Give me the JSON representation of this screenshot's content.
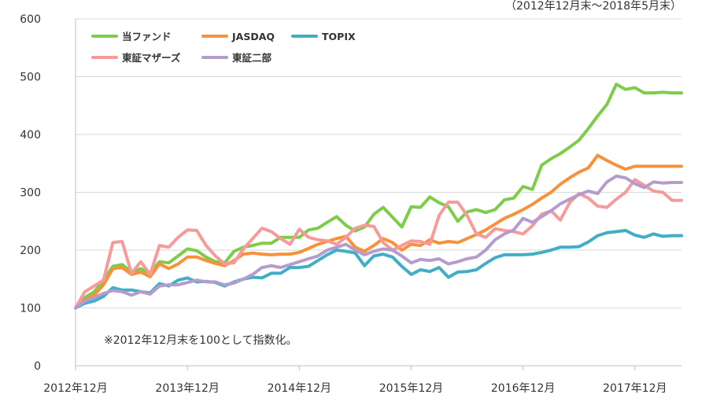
{
  "chart_data": {
    "type": "line",
    "subtitle": "（2012年12月末～2018年5月末）",
    "note": "※2012年12月末を100として指数化。",
    "ylim": [
      0,
      600
    ],
    "yticks": [
      "0",
      "100",
      "200",
      "300",
      "400",
      "500",
      "600"
    ],
    "xticks": [
      "2012年12月",
      "2013年12月",
      "2014年12月",
      "2015年12月",
      "2016年12月",
      "2017年12月"
    ],
    "grid": true,
    "legend_position": "top-left",
    "x": [
      "2012-12",
      "2013-01",
      "2013-02",
      "2013-03",
      "2013-04",
      "2013-05",
      "2013-06",
      "2013-07",
      "2013-08",
      "2013-09",
      "2013-10",
      "2013-11",
      "2013-12",
      "2014-01",
      "2014-02",
      "2014-03",
      "2014-04",
      "2014-05",
      "2014-06",
      "2014-07",
      "2014-08",
      "2014-09",
      "2014-10",
      "2014-11",
      "2014-12",
      "2015-01",
      "2015-02",
      "2015-03",
      "2015-04",
      "2015-05",
      "2015-06",
      "2015-07",
      "2015-08",
      "2015-09",
      "2015-10",
      "2015-11",
      "2015-12",
      "2016-01",
      "2016-02",
      "2016-03",
      "2016-04",
      "2016-05",
      "2016-06",
      "2016-07",
      "2016-08",
      "2016-09",
      "2016-10",
      "2016-11",
      "2016-12",
      "2017-01",
      "2017-02",
      "2017-03",
      "2017-04",
      "2017-05",
      "2017-06",
      "2017-07",
      "2017-08",
      "2017-09",
      "2017-10",
      "2017-11",
      "2017-12",
      "2018-01",
      "2018-02",
      "2018-03",
      "2018-04",
      "2018-05"
    ],
    "series": [
      {
        "name": "当ファンド",
        "color": "#7dcc4a",
        "values": [
          100,
          118,
          128,
          148,
          172,
          175,
          162,
          168,
          160,
          180,
          178,
          190,
          202,
          199,
          188,
          180,
          178,
          198,
          205,
          208,
          212,
          212,
          222,
          222,
          222,
          235,
          238,
          248,
          258,
          243,
          233,
          240,
          262,
          274,
          257,
          240,
          275,
          274,
          292,
          282,
          275,
          250,
          266,
          270,
          265,
          270,
          287,
          290,
          310,
          305,
          347,
          358,
          367,
          378,
          390,
          410,
          432,
          452,
          487,
          478,
          481,
          472,
          472,
          473,
          472,
          472
        ]
      },
      {
        "name": "JASDAQ",
        "color": "#f7923a",
        "values": [
          100,
          114,
          122,
          140,
          168,
          170,
          158,
          162,
          154,
          176,
          168,
          176,
          188,
          188,
          182,
          177,
          173,
          182,
          193,
          195,
          193,
          192,
          193,
          193,
          196,
          203,
          210,
          215,
          220,
          224,
          205,
          198,
          208,
          220,
          213,
          200,
          210,
          208,
          218,
          212,
          215,
          213,
          220,
          227,
          235,
          245,
          255,
          262,
          270,
          279,
          290,
          300,
          314,
          325,
          335,
          342,
          364,
          355,
          347,
          340,
          345,
          345,
          345,
          345,
          345,
          345
        ]
      },
      {
        "name": "TOPIX",
        "color": "#41aec5",
        "values": [
          100,
          108,
          112,
          120,
          135,
          131,
          131,
          128,
          126,
          142,
          138,
          148,
          152,
          145,
          146,
          144,
          138,
          145,
          150,
          153,
          152,
          160,
          160,
          170,
          170,
          172,
          182,
          192,
          200,
          198,
          195,
          173,
          190,
          193,
          188,
          172,
          158,
          166,
          163,
          170,
          153,
          162,
          163,
          166,
          177,
          187,
          192,
          192,
          192,
          193,
          196,
          200,
          205,
          205,
          206,
          214,
          225,
          230,
          232,
          234,
          226,
          222,
          228,
          224,
          225,
          225
        ]
      },
      {
        "name": "東証マザーズ",
        "color": "#f69a9a",
        "values": [
          100,
          128,
          138,
          148,
          213,
          215,
          160,
          180,
          158,
          208,
          205,
          222,
          235,
          234,
          208,
          190,
          176,
          178,
          202,
          220,
          238,
          232,
          220,
          210,
          236,
          222,
          218,
          216,
          210,
          222,
          238,
          243,
          241,
          213,
          200,
          208,
          216,
          215,
          210,
          260,
          283,
          283,
          260,
          228,
          222,
          237,
          234,
          232,
          228,
          242,
          262,
          268,
          252,
          282,
          298,
          290,
          276,
          274,
          288,
          300,
          322,
          312,
          302,
          300,
          286,
          286
        ]
      },
      {
        "name": "東証二部",
        "color": "#b49ccc",
        "values": [
          100,
          112,
          118,
          125,
          130,
          128,
          122,
          128,
          124,
          138,
          140,
          140,
          144,
          148,
          145,
          145,
          140,
          143,
          150,
          158,
          170,
          173,
          170,
          175,
          180,
          185,
          190,
          200,
          205,
          210,
          200,
          192,
          198,
          202,
          200,
          190,
          178,
          184,
          182,
          185,
          176,
          180,
          185,
          188,
          200,
          218,
          228,
          235,
          255,
          248,
          258,
          268,
          280,
          288,
          296,
          302,
          298,
          318,
          328,
          325,
          315,
          308,
          318,
          316,
          317,
          317
        ]
      }
    ]
  }
}
